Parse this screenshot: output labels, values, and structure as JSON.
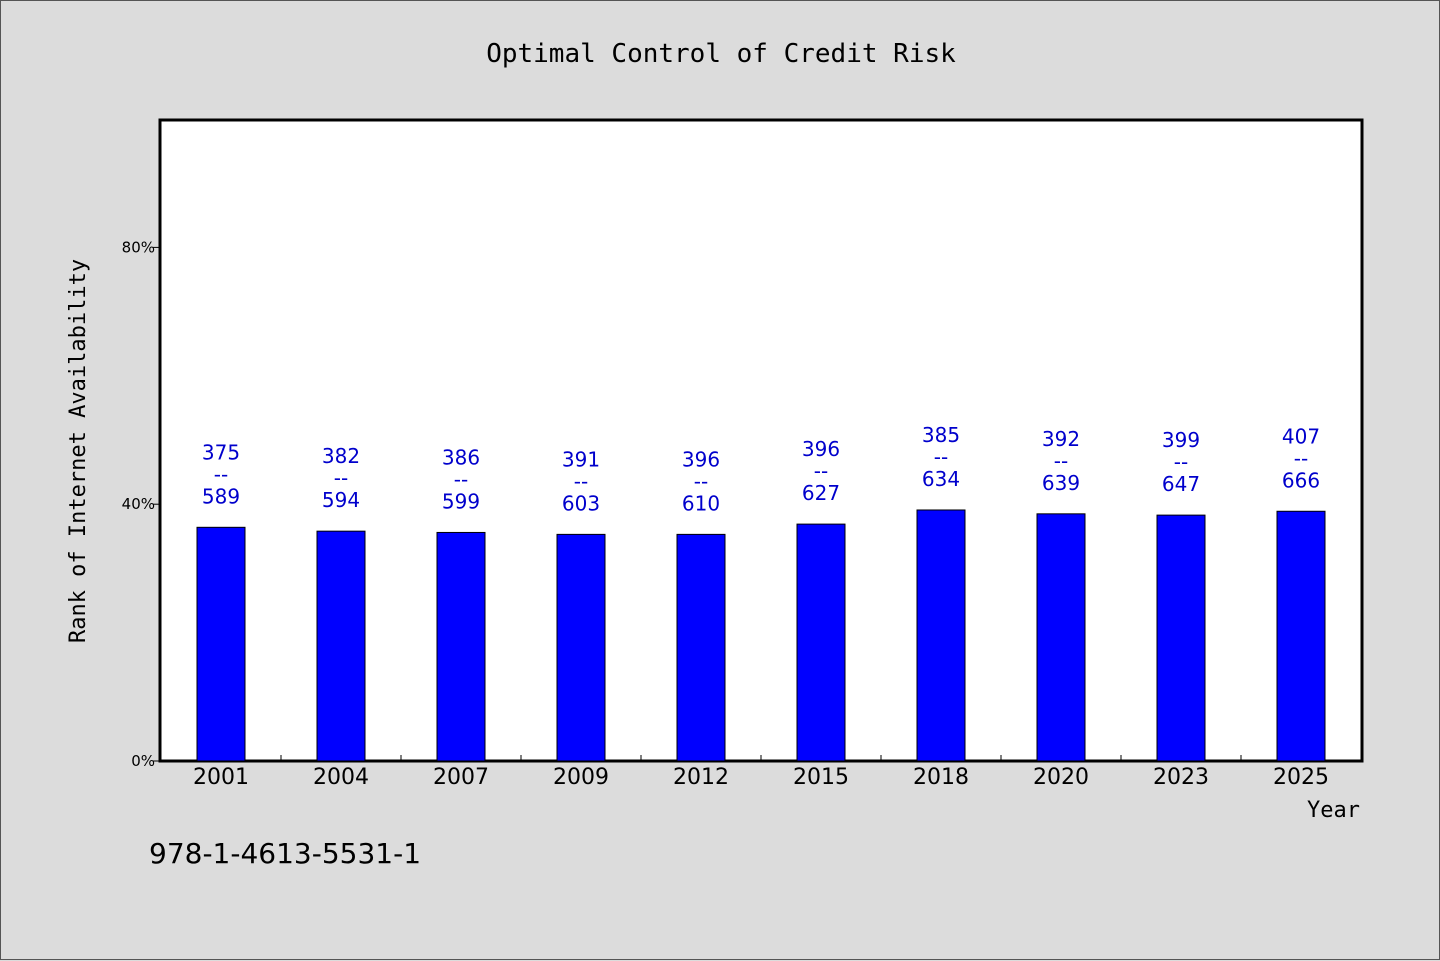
{
  "chart_data": {
    "type": "bar",
    "title": "Optimal Control of Credit Risk",
    "xlabel": "Year",
    "ylabel": "Rank of Internet Availability",
    "categories": [
      "2001",
      "2004",
      "2007",
      "2009",
      "2012",
      "2015",
      "2018",
      "2020",
      "2023",
      "2025"
    ],
    "values": [
      36.4,
      35.8,
      35.6,
      35.3,
      35.3,
      36.9,
      39.1,
      38.5,
      38.3,
      38.9
    ],
    "labels_top": [
      "375",
      "382",
      "386",
      "391",
      "396",
      "396",
      "385",
      "392",
      "399",
      "407"
    ],
    "labels_bottom": [
      "589",
      "594",
      "599",
      "603",
      "610",
      "627",
      "634",
      "639",
      "647",
      "666"
    ],
    "label_separator": "--",
    "ylim": [
      0,
      100
    ],
    "yticks": [
      0,
      40,
      80
    ],
    "ytick_labels": [
      "0%",
      "40%",
      "80%"
    ],
    "bar_color": "#0000ff",
    "label_color": "#0000cc",
    "grid": false,
    "legend": "none"
  },
  "footer": {
    "isbn": "978-1-4613-5531-1"
  }
}
